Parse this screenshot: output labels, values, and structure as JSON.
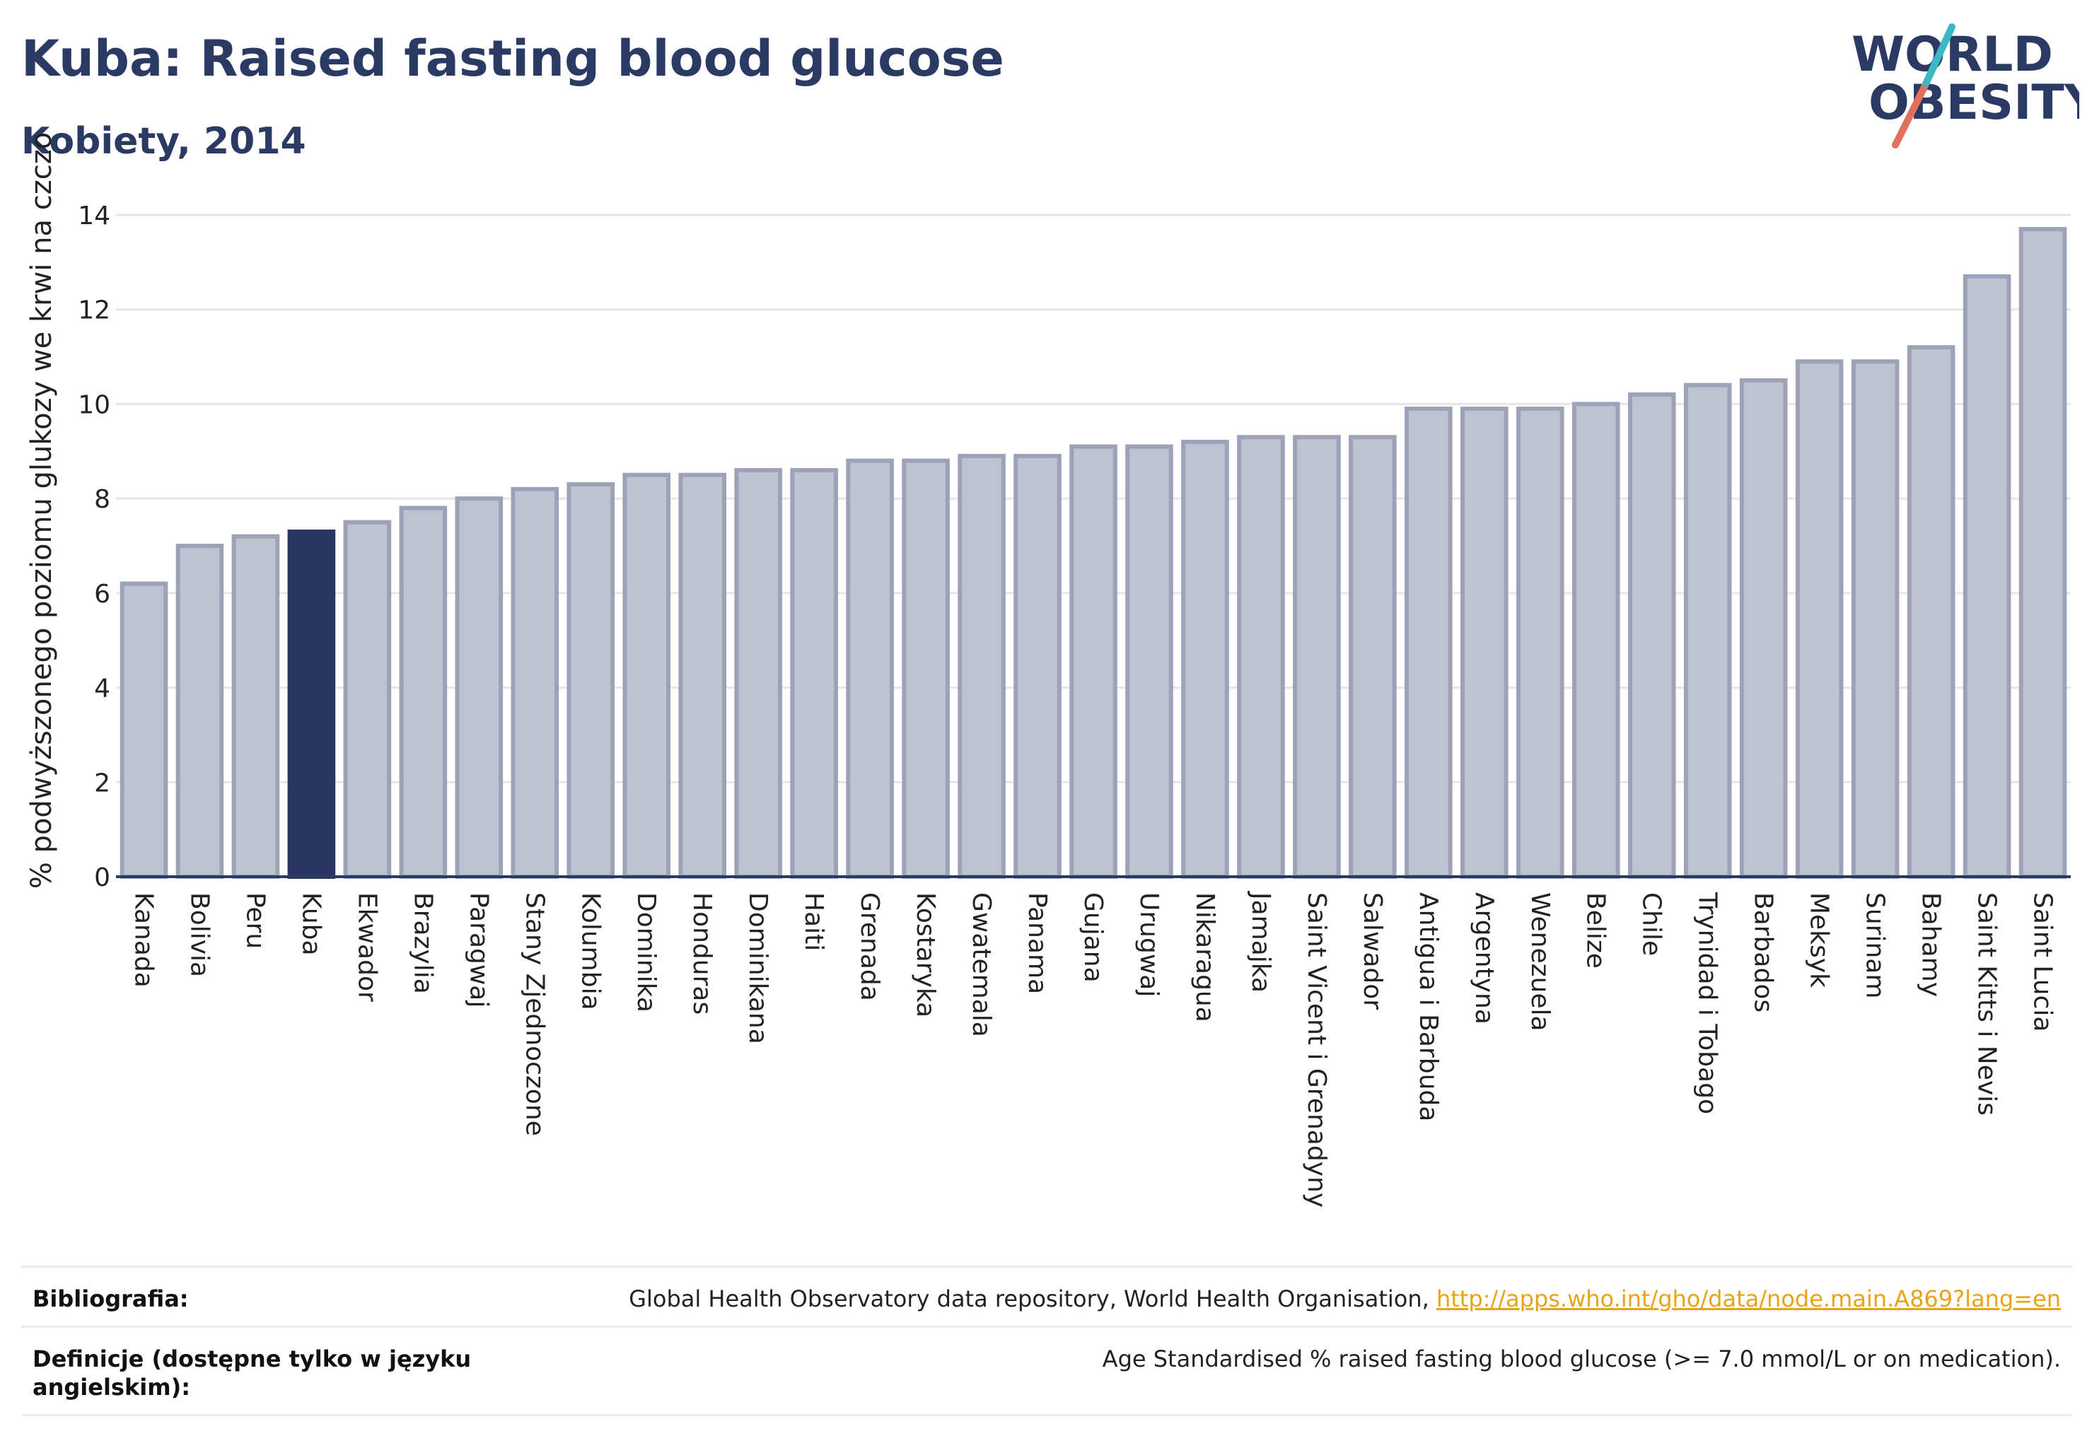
{
  "header": {
    "title": "Kuba: Raised fasting blood glucose",
    "subtitle": "Kobiety, 2014",
    "logo_line1": "WORLD",
    "logo_line2": "OBESITY"
  },
  "chart_data": {
    "type": "bar",
    "ylabel": "% podwyższonego poziomu glukozy we krwi na czczo",
    "ylim": [
      0,
      14
    ],
    "yticks": [
      0,
      2,
      4,
      6,
      8,
      10,
      12,
      14
    ],
    "grid": true,
    "highlight": "Kuba",
    "categories": [
      "Kanada",
      "Bolivia",
      "Peru",
      "Kuba",
      "Ekwador",
      "Brazylia",
      "Paragwaj",
      "Stany Zjednoczone",
      "Kolumbia",
      "Dominika",
      "Honduras",
      "Dominikana",
      "Haiti",
      "Grenada",
      "Kostaryka",
      "Gwatemala",
      "Panama",
      "Gujana",
      "Urugwaj",
      "Nikaragua",
      "Jamajka",
      "Saint Vicent i Grenadyny",
      "Salwador",
      "Antigua i Barbuda",
      "Argentyna",
      "Wenezuela",
      "Belize",
      "Chile",
      "Trynidad i Tobago",
      "Barbados",
      "Meksyk",
      "Surinam",
      "Bahamy",
      "Saint Kitts i Nevis",
      "Saint Lucia"
    ],
    "values": [
      6.2,
      7.0,
      7.2,
      7.3,
      7.5,
      7.8,
      8.0,
      8.2,
      8.3,
      8.5,
      8.5,
      8.6,
      8.6,
      8.8,
      8.8,
      8.9,
      8.9,
      9.1,
      9.1,
      9.2,
      9.3,
      9.3,
      9.3,
      9.9,
      9.9,
      9.9,
      10.0,
      10.2,
      10.4,
      10.5,
      10.9,
      10.9,
      11.2,
      12.7,
      13.7
    ],
    "colors": {
      "bar": "#bfc2cf",
      "bar_border": "#9da2b8",
      "highlight": "#2b3660",
      "axis": "#2b3a63",
      "grid": "#e6e6e6"
    }
  },
  "footer": {
    "bibliography_label": "Bibliografia:",
    "bibliography_text": "Global Health Observatory data repository, World Health Organisation, ",
    "bibliography_link": "http://apps.who.int/gho/data/node.main.A869?lang=en",
    "definition_label": "Definicje (dostępne tylko w języku angielskim):",
    "definition_text": "Age Standardised % raised fasting blood glucose (>= 7.0 mmol/L or on medication)."
  }
}
